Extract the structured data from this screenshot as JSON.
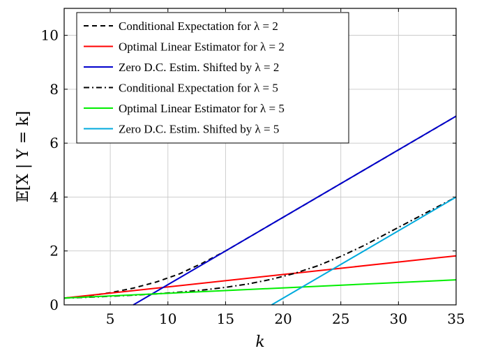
{
  "chart_data": {
    "type": "line",
    "xlabel": "k",
    "ylabel": "𝔼[X | Y = k]",
    "xlim": [
      1,
      35
    ],
    "ylim": [
      0,
      11
    ],
    "xticks": [
      5,
      10,
      15,
      20,
      25,
      30,
      35
    ],
    "yticks": [
      0,
      2,
      4,
      6,
      8,
      10
    ],
    "grid": true,
    "legend_position": "top-left",
    "series": [
      {
        "name": "Conditional Expectation for λ = 2",
        "color": "#000000",
        "dash": "dashed",
        "x": [
          1,
          3,
          5,
          7,
          9,
          11,
          13,
          15,
          17,
          19,
          21,
          23,
          25,
          27,
          29,
          31,
          33,
          35
        ],
        "y": [
          0.25,
          0.33,
          0.45,
          0.62,
          0.85,
          1.15,
          1.55,
          2.0,
          2.5,
          3.0,
          3.5,
          4.0,
          4.5,
          5.0,
          5.5,
          6.0,
          6.5,
          7.0
        ]
      },
      {
        "name": "Optimal Linear Estimator for λ = 2",
        "color": "#ff0000",
        "dash": "solid",
        "x": [
          1,
          35
        ],
        "y": [
          0.25,
          1.82
        ]
      },
      {
        "name": "Zero D.C. Estim. Shifted by λ = 2",
        "color": "#0000cc",
        "dash": "solid",
        "x": [
          7,
          35
        ],
        "y": [
          0.0,
          7.0
        ]
      },
      {
        "name": "Conditional Expectation for λ = 5",
        "color": "#000000",
        "dash": "dashdot",
        "x": [
          1,
          3,
          5,
          7,
          9,
          11,
          13,
          15,
          17,
          19,
          21,
          23,
          25,
          27,
          29,
          31,
          33,
          35
        ],
        "y": [
          0.25,
          0.28,
          0.32,
          0.36,
          0.41,
          0.47,
          0.55,
          0.65,
          0.78,
          0.95,
          1.17,
          1.45,
          1.8,
          2.2,
          2.65,
          3.1,
          3.55,
          4.0
        ]
      },
      {
        "name": "Optimal Linear Estimator for λ = 5",
        "color": "#00ee00",
        "dash": "solid",
        "x": [
          1,
          35
        ],
        "y": [
          0.25,
          0.93
        ]
      },
      {
        "name": "Zero D.C. Estim. Shifted by λ = 5",
        "color": "#00aadd",
        "dash": "solid",
        "x": [
          19,
          35
        ],
        "y": [
          0.0,
          4.0
        ]
      }
    ]
  }
}
